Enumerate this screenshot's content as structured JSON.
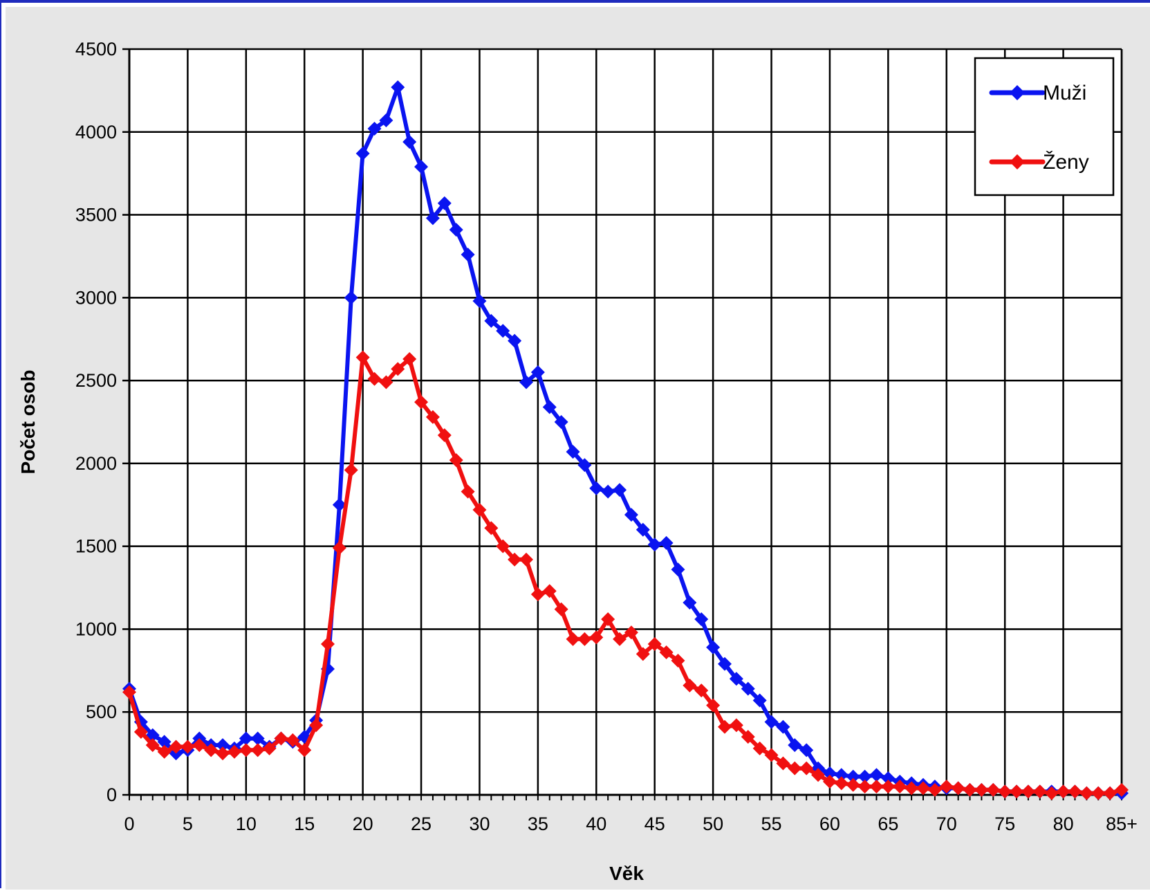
{
  "chart_data": {
    "type": "line",
    "xlabel": "Věk",
    "ylabel": "Počet osob",
    "x": [
      0,
      1,
      2,
      3,
      4,
      5,
      6,
      7,
      8,
      9,
      10,
      11,
      12,
      13,
      14,
      15,
      16,
      17,
      18,
      19,
      20,
      21,
      22,
      23,
      24,
      25,
      26,
      27,
      28,
      29,
      30,
      31,
      32,
      33,
      34,
      35,
      36,
      37,
      38,
      39,
      40,
      41,
      42,
      43,
      44,
      45,
      46,
      47,
      48,
      49,
      50,
      51,
      52,
      53,
      54,
      55,
      56,
      57,
      58,
      59,
      60,
      61,
      62,
      63,
      64,
      65,
      66,
      67,
      68,
      69,
      70,
      71,
      72,
      73,
      74,
      75,
      76,
      77,
      78,
      79,
      80,
      81,
      82,
      83,
      84,
      85
    ],
    "x_tick_labels": [
      "0",
      "5",
      "10",
      "15",
      "20",
      "25",
      "30",
      "35",
      "40",
      "45",
      "50",
      "55",
      "60",
      "65",
      "70",
      "75",
      "80",
      "85+"
    ],
    "ylim": [
      0,
      4500
    ],
    "y_ticks": [
      0,
      500,
      1000,
      1500,
      2000,
      2500,
      3000,
      3500,
      4000,
      4500
    ],
    "grid": true,
    "legend_position": "top-right",
    "series": [
      {
        "name": "Muži",
        "color": "#0a14f0",
        "values": [
          640,
          440,
          360,
          320,
          250,
          270,
          340,
          300,
          300,
          280,
          340,
          340,
          290,
          340,
          320,
          350,
          450,
          760,
          1750,
          3000,
          3870,
          4020,
          4070,
          4270,
          3940,
          3790,
          3480,
          3570,
          3410,
          3260,
          2980,
          2860,
          2800,
          2740,
          2490,
          2550,
          2340,
          2250,
          2070,
          1990,
          1850,
          1830,
          1840,
          1690,
          1600,
          1510,
          1520,
          1360,
          1160,
          1060,
          890,
          790,
          700,
          640,
          570,
          440,
          410,
          300,
          270,
          160,
          130,
          120,
          110,
          110,
          120,
          100,
          80,
          70,
          60,
          50,
          40,
          40,
          30,
          30,
          30,
          20,
          20,
          20,
          20,
          20,
          20,
          20,
          10,
          10,
          10,
          10
        ]
      },
      {
        "name": "Ženy",
        "color": "#f01010",
        "values": [
          620,
          380,
          300,
          260,
          290,
          290,
          300,
          270,
          250,
          260,
          270,
          270,
          280,
          340,
          330,
          270,
          420,
          910,
          1490,
          1960,
          2640,
          2510,
          2490,
          2570,
          2630,
          2370,
          2280,
          2170,
          2020,
          1830,
          1720,
          1610,
          1500,
          1420,
          1420,
          1210,
          1230,
          1120,
          940,
          940,
          950,
          1060,
          940,
          980,
          850,
          910,
          860,
          810,
          660,
          630,
          540,
          410,
          420,
          350,
          280,
          240,
          190,
          160,
          160,
          120,
          80,
          70,
          60,
          50,
          50,
          50,
          50,
          40,
          40,
          30,
          50,
          40,
          30,
          30,
          30,
          20,
          20,
          20,
          20,
          10,
          20,
          20,
          10,
          10,
          10,
          30
        ]
      }
    ]
  }
}
